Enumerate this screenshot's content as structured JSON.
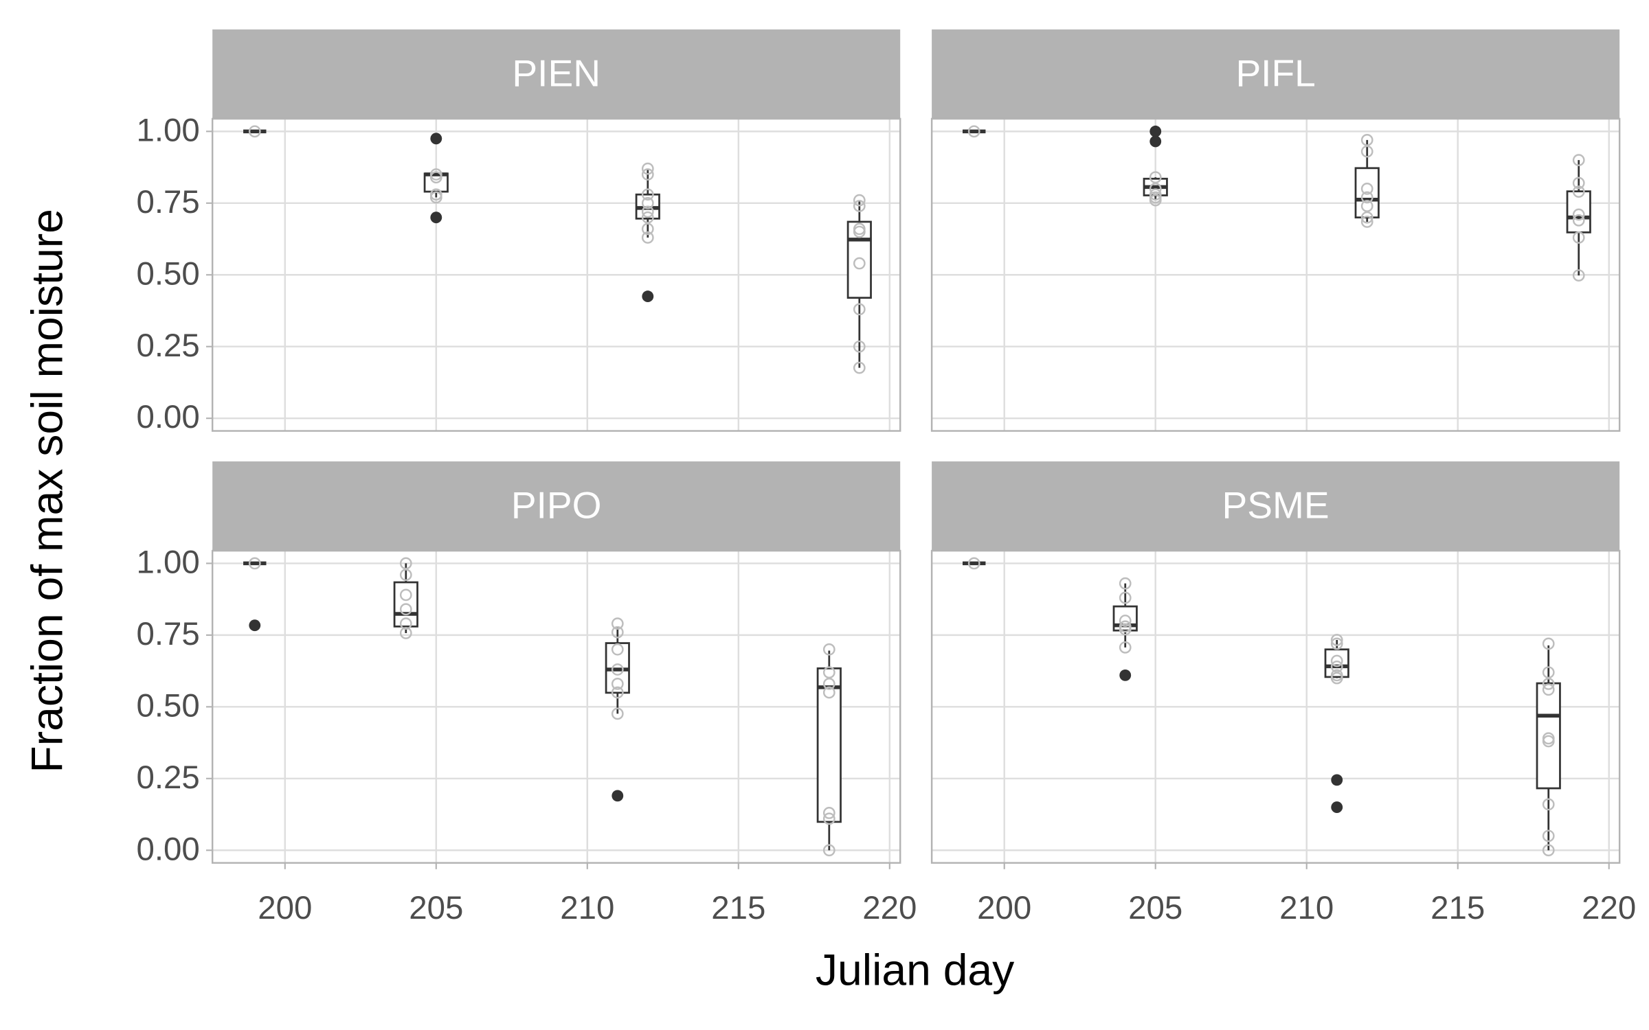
{
  "chart_data": {
    "type": "box",
    "x_label": "Julian day",
    "y_label": "Fraction of max soil moisture",
    "xlim": [
      197.6,
      220.35
    ],
    "xticks": [
      200,
      205,
      210,
      215,
      220
    ],
    "ylim": [
      -0.044,
      1.044
    ],
    "yticks": [
      {
        "value": 0,
        "label": "0.00"
      },
      {
        "value": 0.25,
        "label": "0.25"
      },
      {
        "value": 0.5,
        "label": "0.50"
      },
      {
        "value": 0.75,
        "label": "0.75"
      },
      {
        "value": 1,
        "label": "1.00"
      }
    ],
    "grid": true,
    "box_color": "#333333",
    "point_color": "#bdbdbd",
    "facets": [
      {
        "title": "PIEN",
        "boxes": [
          {
            "x": 199,
            "whisker_low": 1,
            "q1": 1,
            "median": 1,
            "q3": 1,
            "whisker_high": 1,
            "outliers": [],
            "points": [
              1
            ]
          },
          {
            "x": 205,
            "whisker_low": 0.77,
            "q1": 0.79,
            "median": 0.85,
            "q3": 0.853,
            "whisker_high": 0.853,
            "outliers": [
              0.975,
              0.7
            ],
            "points": [
              0.85,
              0.84,
              0.78,
              0.77
            ]
          },
          {
            "x": 212,
            "whisker_low": 0.63,
            "q1": 0.696,
            "median": 0.733,
            "q3": 0.78,
            "whisker_high": 0.87,
            "outliers": [
              0.425
            ],
            "points": [
              0.87,
              0.85,
              0.78,
              0.75,
              0.72,
              0.7,
              0.66,
              0.63
            ]
          },
          {
            "x": 219,
            "whisker_low": 0.176,
            "q1": 0.42,
            "median": 0.623,
            "q3": 0.685,
            "whisker_high": 0.76,
            "outliers": [],
            "points": [
              0.76,
              0.74,
              0.66,
              0.65,
              0.54,
              0.38,
              0.25,
              0.176
            ]
          }
        ]
      },
      {
        "title": "PIFL",
        "boxes": [
          {
            "x": 199,
            "whisker_low": 1,
            "q1": 1,
            "median": 1,
            "q3": 1,
            "whisker_high": 1,
            "outliers": [],
            "points": [
              1
            ]
          },
          {
            "x": 205,
            "whisker_low": 0.76,
            "q1": 0.777,
            "median": 0.806,
            "q3": 0.835,
            "whisker_high": 0.84,
            "outliers": [
              1,
              0.965
            ],
            "points": [
              0.84,
              0.8,
              0.78,
              0.77,
              0.76
            ]
          },
          {
            "x": 212,
            "whisker_low": 0.685,
            "q1": 0.7,
            "median": 0.762,
            "q3": 0.872,
            "whisker_high": 0.97,
            "outliers": [],
            "points": [
              0.97,
              0.93,
              0.8,
              0.77,
              0.74,
              0.7,
              0.685
            ]
          },
          {
            "x": 219,
            "whisker_low": 0.498,
            "q1": 0.648,
            "median": 0.7,
            "q3": 0.791,
            "whisker_high": 0.9,
            "outliers": [],
            "points": [
              0.9,
              0.82,
              0.79,
              0.71,
              0.69,
              0.63,
              0.498
            ]
          }
        ]
      },
      {
        "title": "PIPO",
        "boxes": [
          {
            "x": 199,
            "whisker_low": 1,
            "q1": 1,
            "median": 1,
            "q3": 1,
            "whisker_high": 1,
            "outliers": [
              0.784
            ],
            "points": [
              1
            ]
          },
          {
            "x": 204,
            "whisker_low": 0.757,
            "q1": 0.78,
            "median": 0.824,
            "q3": 0.934,
            "whisker_high": 1,
            "outliers": [],
            "points": [
              1,
              0.96,
              0.89,
              0.84,
              0.79,
              0.757
            ]
          },
          {
            "x": 211,
            "whisker_low": 0.476,
            "q1": 0.549,
            "median": 0.63,
            "q3": 0.722,
            "whisker_high": 0.78,
            "outliers": [
              0.19
            ],
            "points": [
              0.79,
              0.76,
              0.7,
              0.63,
              0.58,
              0.55,
              0.476
            ]
          },
          {
            "x": 218,
            "whisker_low": 0,
            "q1": 0.099,
            "median": 0.568,
            "q3": 0.634,
            "whisker_high": 0.696,
            "outliers": [],
            "points": [
              0.7,
              0.62,
              0.58,
              0.55,
              0.13,
              0.11,
              0
            ]
          }
        ]
      },
      {
        "title": "PSME",
        "boxes": [
          {
            "x": 199,
            "whisker_low": 1,
            "q1": 1,
            "median": 1,
            "q3": 1,
            "whisker_high": 1,
            "outliers": [],
            "points": [
              1
            ]
          },
          {
            "x": 204,
            "whisker_low": 0.707,
            "q1": 0.766,
            "median": 0.784,
            "q3": 0.85,
            "whisker_high": 0.93,
            "outliers": [
              0.61
            ],
            "points": [
              0.93,
              0.88,
              0.8,
              0.78,
              0.77,
              0.707
            ]
          },
          {
            "x": 211,
            "whisker_low": 0.6,
            "q1": 0.604,
            "median": 0.641,
            "q3": 0.7,
            "whisker_high": 0.733,
            "outliers": [
              0.245,
              0.15
            ],
            "points": [
              0.733,
              0.72,
              0.66,
              0.64,
              0.61,
              0.6
            ]
          },
          {
            "x": 218,
            "whisker_low": 0,
            "q1": 0.216,
            "median": 0.469,
            "q3": 0.582,
            "whisker_high": 0.714,
            "outliers": [],
            "points": [
              0.72,
              0.62,
              0.58,
              0.56,
              0.39,
              0.38,
              0.16,
              0.05,
              0
            ]
          }
        ]
      }
    ]
  }
}
